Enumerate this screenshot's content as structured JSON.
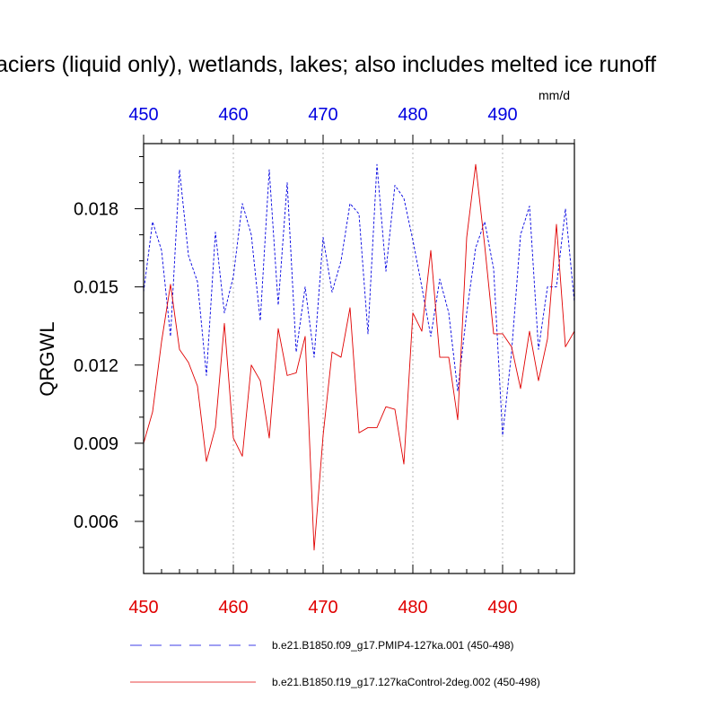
{
  "chart_data": {
    "type": "line",
    "title": "aciers (liquid only), wetlands, lakes; also includes melted ice runoff",
    "ylabel": "QRGWL",
    "units": "mm/d",
    "xlim": [
      450,
      498
    ],
    "ylim": [
      0.004,
      0.0205
    ],
    "x_ticks": [
      450,
      460,
      470,
      480,
      490
    ],
    "y_ticks": [
      0.006,
      0.009,
      0.012,
      0.015,
      0.018
    ],
    "y_tick_labels": [
      "0.006",
      "0.009",
      "0.012",
      "0.015",
      "0.018"
    ],
    "grid": "x-dotted",
    "colors": {
      "blue": "#0000e0",
      "red": "#e00000"
    },
    "x": [
      450,
      451,
      452,
      453,
      454,
      455,
      456,
      457,
      458,
      459,
      460,
      461,
      462,
      463,
      464,
      465,
      466,
      467,
      468,
      469,
      470,
      471,
      472,
      473,
      474,
      475,
      476,
      477,
      478,
      479,
      480,
      481,
      482,
      483,
      484,
      485,
      486,
      487,
      488,
      489,
      490,
      491,
      492,
      493,
      494,
      495,
      496,
      497,
      498
    ],
    "series": [
      {
        "name": "b.e21.B1850.f09_g17.PMIP4-127ka.001 (450-498)",
        "color": "#0000e0",
        "dash": "dashed",
        "values": [
          0.0148,
          0.0175,
          0.0164,
          0.0131,
          0.0195,
          0.0162,
          0.0152,
          0.0116,
          0.0171,
          0.014,
          0.0154,
          0.0182,
          0.017,
          0.0137,
          0.0195,
          0.0143,
          0.019,
          0.0125,
          0.015,
          0.0123,
          0.0169,
          0.0148,
          0.016,
          0.0182,
          0.0178,
          0.0132,
          0.0197,
          0.0156,
          0.0189,
          0.0184,
          0.0168,
          0.015,
          0.0131,
          0.0153,
          0.014,
          0.011,
          0.014,
          0.0165,
          0.0175,
          0.0157,
          0.0093,
          0.0125,
          0.017,
          0.0181,
          0.0126,
          0.015,
          0.015,
          0.018,
          0.0144
        ]
      },
      {
        "name": "b.e21.B1850.f19_g17.127kaControl-2deg.002 (450-498)",
        "color": "#e00000",
        "dash": "solid",
        "values": [
          0.009,
          0.0102,
          0.0129,
          0.0151,
          0.0126,
          0.0121,
          0.0112,
          0.0083,
          0.0096,
          0.0136,
          0.0092,
          0.0085,
          0.012,
          0.0114,
          0.0092,
          0.0134,
          0.0116,
          0.0117,
          0.0131,
          0.0049,
          0.0093,
          0.0125,
          0.0123,
          0.0142,
          0.0094,
          0.0096,
          0.0096,
          0.0104,
          0.0103,
          0.0082,
          0.014,
          0.0133,
          0.0164,
          0.0123,
          0.0123,
          0.0099,
          0.0169,
          0.0197,
          0.0166,
          0.0132,
          0.0132,
          0.0127,
          0.0111,
          0.0133,
          0.0114,
          0.013,
          0.0174,
          0.0127,
          0.0133
        ]
      }
    ]
  }
}
